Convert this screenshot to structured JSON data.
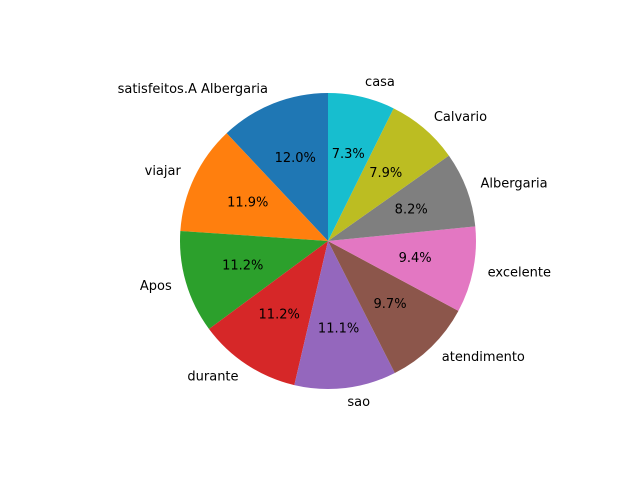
{
  "chart_data": {
    "type": "pie",
    "start_angle_deg": 90,
    "direction": "counterclockwise",
    "categories": [
      "satisfeitos.A Albergaria",
      "viajar",
      "Apos",
      "durante",
      "sao",
      "atendimento",
      "excelente",
      "Albergaria",
      "Calvario",
      "casa"
    ],
    "values": [
      12.0,
      11.9,
      11.2,
      11.2,
      11.1,
      9.7,
      9.4,
      8.2,
      7.9,
      7.3
    ],
    "pct_labels": [
      "12.0%",
      "11.9%",
      "11.2%",
      "11.2%",
      "11.1%",
      "9.7%",
      "9.4%",
      "8.2%",
      "7.9%",
      "7.3%"
    ],
    "colors": [
      "#1f77b4",
      "#ff7f0e",
      "#2ca02c",
      "#d62728",
      "#9467bd",
      "#8c564b",
      "#e377c2",
      "#7f7f7f",
      "#bcbd22",
      "#17becf"
    ]
  }
}
